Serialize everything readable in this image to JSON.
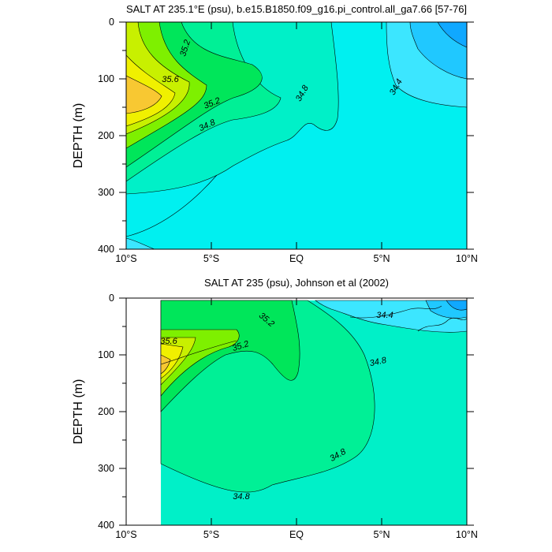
{
  "chart_data": [
    {
      "type": "contour",
      "title": "SALT AT 235.1°E (psu), b.e15.B1850.f09_g16.pi_control.all_ga7.66 [57-76]",
      "ylabel": "DEPTH (m)",
      "x_ticks": [
        "10°S",
        "5°S",
        "EQ",
        "5°N",
        "10°N"
      ],
      "y_ticks": [
        "0",
        "100",
        "200",
        "300",
        "400"
      ],
      "xlim": [
        -10,
        10
      ],
      "ylim": [
        400,
        0
      ],
      "contour_labels": [
        {
          "text": "35.2",
          "x": -5.0,
          "y": 40
        },
        {
          "text": "35.6",
          "x": -7.5,
          "y": 100
        },
        {
          "text": "35.2",
          "x": -4.8,
          "y": 142
        },
        {
          "text": "34.8",
          "x": -5.0,
          "y": 180
        },
        {
          "text": "34.8",
          "x": 0.3,
          "y": 125
        },
        {
          "text": "34.4",
          "x": 5.8,
          "y": 112
        }
      ]
    },
    {
      "type": "contour",
      "title": "SALT AT 235 (psu), Johnson et al (2002)",
      "ylabel": "DEPTH (m)",
      "x_ticks": [
        "10°S",
        "5°S",
        "EQ",
        "5°N",
        "10°N"
      ],
      "y_ticks": [
        "0",
        "100",
        "200",
        "300",
        "400"
      ],
      "xlim": [
        -10,
        10
      ],
      "ylim": [
        400,
        0
      ],
      "contour_labels": [
        {
          "text": "35.2",
          "x": -1.8,
          "y": 40
        },
        {
          "text": "35.6",
          "x": -8.0,
          "y": 75
        },
        {
          "text": "35.2",
          "x": -3.2,
          "y": 85
        },
        {
          "text": "34.8",
          "x": 4.5,
          "y": 120
        },
        {
          "text": "34.4",
          "x": 5.2,
          "y": 30
        },
        {
          "text": "34.8",
          "x": 2.5,
          "y": 285
        },
        {
          "text": "34.8",
          "x": -3.2,
          "y": 350
        }
      ]
    }
  ]
}
